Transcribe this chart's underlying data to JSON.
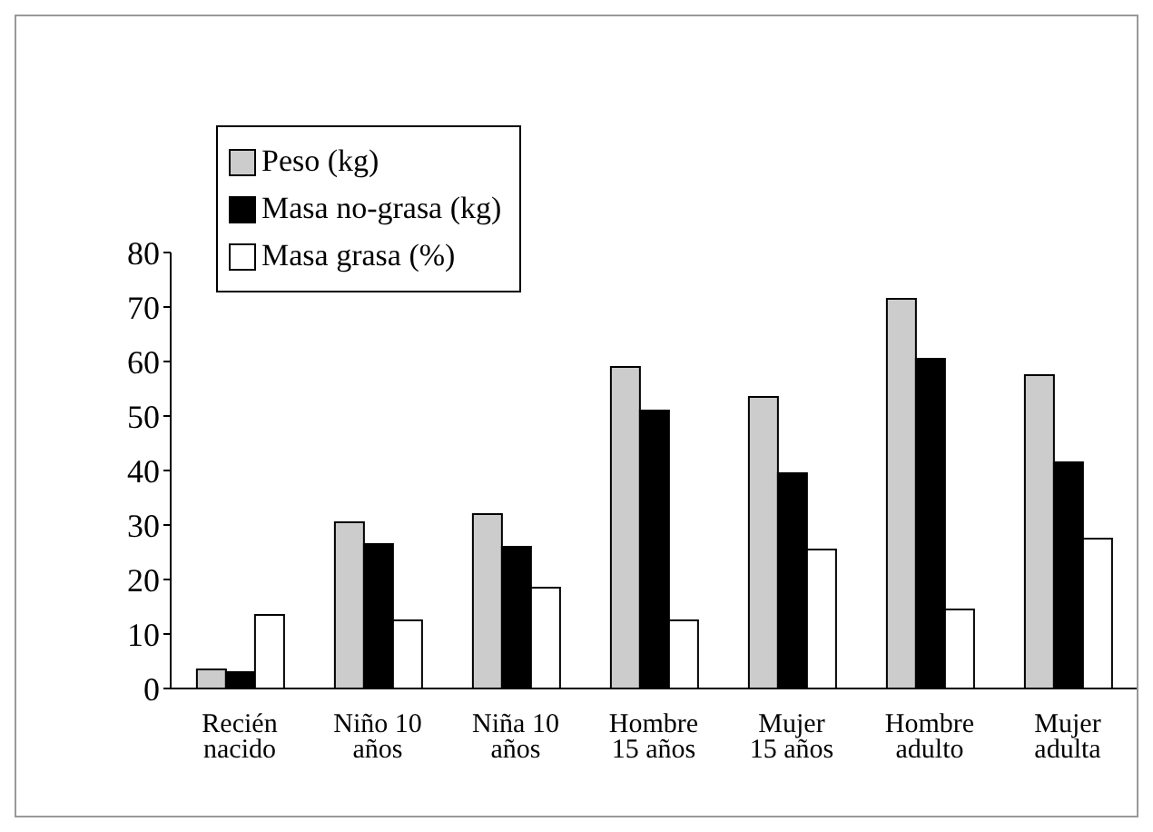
{
  "chart_data": {
    "type": "bar",
    "categories": [
      "Recién nacido",
      "Niño 10 años",
      "Niña 10 años",
      "Hombre 15 años",
      "Mujer 15 años",
      "Hombre adulto",
      "Mujer adulta"
    ],
    "series": [
      {
        "name": "Peso (kg)",
        "color": "#cccccc",
        "values": [
          3.5,
          30.5,
          32,
          59,
          53.5,
          71.5,
          57.5
        ]
      },
      {
        "name": "Masa no-grasa (kg)",
        "color": "#000000",
        "values": [
          3,
          26.5,
          26,
          51,
          39.5,
          60.5,
          41.5
        ]
      },
      {
        "name": "Masa grasa (%)",
        "color": "#ffffff",
        "values": [
          13.5,
          12.5,
          18.5,
          12.5,
          25.5,
          14.5,
          27.5
        ]
      }
    ],
    "ylim": [
      0,
      80
    ],
    "yticks": [
      0,
      10,
      20,
      30,
      40,
      50,
      60,
      70,
      80
    ],
    "grid": false,
    "legend": "top left"
  }
}
